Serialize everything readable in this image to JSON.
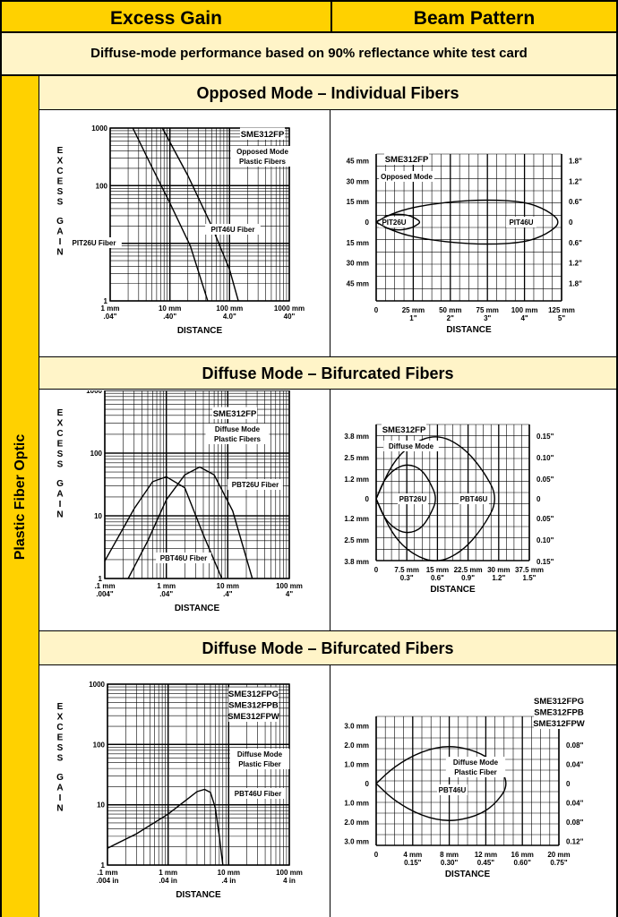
{
  "header": {
    "left": "Excess Gain",
    "right": "Beam Pattern"
  },
  "banner": "Diffuse-mode performance based on 90% reflectance white test card",
  "side_label": "Plastic Fiber Optic",
  "sections": [
    {
      "title": "Opposed Mode – Individual Fibers"
    },
    {
      "title": "Diffuse Mode – Bifurcated Fibers"
    },
    {
      "title": "Diffuse Mode – Bifurcated Fibers"
    }
  ],
  "chart_data": [
    {
      "id": "eg1",
      "type": "line",
      "title": "SME312FP",
      "annotation": "Opposed Mode\nPlastic Fibers",
      "ylabel": "EXCESS GAIN",
      "xlabel": "DISTANCE",
      "xscale": "log",
      "yscale": "log",
      "xlim": [
        1,
        1000
      ],
      "ylim": [
        1,
        1000
      ],
      "x_ticks": [
        {
          "v": 1,
          "l1": "1 mm",
          "l2": ".04\""
        },
        {
          "v": 10,
          "l1": "10 mm",
          "l2": ".40\""
        },
        {
          "v": 100,
          "l1": "100 mm",
          "l2": "4.0\""
        },
        {
          "v": 1000,
          "l1": "1000 mm",
          "l2": "40\""
        }
      ],
      "y_ticks": [
        {
          "v": 1,
          "l": "1"
        },
        {
          "v": 10,
          "l": "10"
        },
        {
          "v": 100,
          "l": "100"
        },
        {
          "v": 1000,
          "l": "1000"
        }
      ],
      "series": [
        {
          "name": "PIT26U Fiber",
          "x": [
            2.4,
            5,
            10,
            22,
            43
          ],
          "y": [
            1000,
            210,
            50,
            9,
            1
          ]
        },
        {
          "name": "PIT46U Fiber",
          "x": [
            7.5,
            20,
            50,
            100,
            140
          ],
          "y": [
            1000,
            150,
            20,
            3.5,
            1
          ]
        }
      ],
      "grid": true
    },
    {
      "id": "bp1",
      "type": "line",
      "title": "SME312FP",
      "annotation": "Opposed Mode",
      "xlabel": "DISTANCE",
      "xlim": [
        0,
        125
      ],
      "ylim": [
        -50,
        50
      ],
      "x_ticks": [
        {
          "v": 0,
          "l1": "0",
          "l2": ""
        },
        {
          "v": 25,
          "l1": "25 mm",
          "l2": "1\""
        },
        {
          "v": 50,
          "l1": "50 mm",
          "l2": "2\""
        },
        {
          "v": 75,
          "l1": "75 mm",
          "l2": "3\""
        },
        {
          "v": 100,
          "l1": "100 mm",
          "l2": "4\""
        },
        {
          "v": 125,
          "l1": "125 mm",
          "l2": "5\""
        }
      ],
      "y_ticks_left": [
        {
          "v": 45,
          "l": "45 mm"
        },
        {
          "v": 30,
          "l": "30 mm"
        },
        {
          "v": 15,
          "l": "15 mm"
        },
        {
          "v": 0,
          "l": "0"
        },
        {
          "v": -15,
          "l": "15 mm"
        },
        {
          "v": -30,
          "l": "30 mm"
        },
        {
          "v": -45,
          "l": "45 mm"
        }
      ],
      "y_ticks_right": [
        {
          "v": 45,
          "l": "1.8\""
        },
        {
          "v": 30,
          "l": "1.2\""
        },
        {
          "v": 15,
          "l": "0.6\""
        },
        {
          "v": 0,
          "l": "0"
        },
        {
          "v": -15,
          "l": "0.6\""
        },
        {
          "v": -30,
          "l": "1.2\""
        },
        {
          "v": -45,
          "l": "1.8\""
        }
      ],
      "series": [
        {
          "name": "PIT26U",
          "x": [
            0,
            6,
            14,
            22,
            27,
            30,
            27,
            22,
            14,
            6,
            0
          ],
          "y": [
            0,
            4.5,
            6,
            5,
            2.5,
            0,
            -2.5,
            -5,
            -6,
            -4.5,
            0
          ]
        },
        {
          "name": "PIT46U",
          "x": [
            0,
            10,
            25,
            50,
            75,
            100,
            115,
            125,
            115,
            100,
            75,
            50,
            25,
            10,
            0
          ],
          "y": [
            0,
            6,
            11,
            15,
            16.5,
            15,
            9,
            0,
            -9,
            -15,
            -16.5,
            -15,
            -11,
            -6,
            0
          ]
        }
      ],
      "grid": true
    },
    {
      "id": "eg2",
      "type": "line",
      "title": "SME312FP",
      "annotation": "Diffuse Mode\nPlastic Fibers",
      "ylabel": "EXCESS GAIN",
      "xlabel": "DISTANCE",
      "xscale": "log",
      "yscale": "log",
      "xlim": [
        0.1,
        100
      ],
      "ylim": [
        1,
        1000
      ],
      "x_ticks": [
        {
          "v": 0.1,
          "l1": ".1 mm",
          "l2": ".004\""
        },
        {
          "v": 1,
          "l1": "1 mm",
          "l2": ".04\""
        },
        {
          "v": 10,
          "l1": "10 mm",
          "l2": ".4\""
        },
        {
          "v": 100,
          "l1": "100 mm",
          "l2": "4\""
        }
      ],
      "y_ticks": [
        {
          "v": 1,
          "l": "1"
        },
        {
          "v": 10,
          "l": "10"
        },
        {
          "v": 100,
          "l": "100"
        },
        {
          "v": 1000,
          "l": "1000"
        }
      ],
      "series": [
        {
          "name": "PBT26U Fiber",
          "x": [
            0.1,
            0.3,
            0.6,
            1,
            2,
            4,
            8
          ],
          "y": [
            1.9,
            13,
            35,
            42,
            28,
            5,
            1
          ]
        },
        {
          "name": "PBT46U Fiber",
          "x": [
            0.24,
            0.5,
            1,
            2,
            3.5,
            6,
            12,
            25
          ],
          "y": [
            1,
            4,
            18,
            45,
            60,
            45,
            12,
            1
          ]
        }
      ],
      "grid": true
    },
    {
      "id": "bp2",
      "type": "line",
      "title": "SME312FP",
      "annotation": "Diffuse Mode",
      "xlabel": "DISTANCE",
      "xlim": [
        0,
        37.5
      ],
      "ylim": [
        -4.5,
        4.5
      ],
      "x_ticks": [
        {
          "v": 0,
          "l1": "0",
          "l2": ""
        },
        {
          "v": 7.5,
          "l1": "7.5 mm",
          "l2": "0.3\""
        },
        {
          "v": 15,
          "l1": "15 mm",
          "l2": "0.6\""
        },
        {
          "v": 22.5,
          "l1": "22.5 mm",
          "l2": "0.9\""
        },
        {
          "v": 30,
          "l1": "30 mm",
          "l2": "1.2\""
        },
        {
          "v": 37.5,
          "l1": "37.5 mm",
          "l2": "1.5\""
        }
      ],
      "y_ticks_left": [
        {
          "v": 3.8,
          "l": "3.8 mm"
        },
        {
          "v": 2.5,
          "l": "2.5 mm"
        },
        {
          "v": 1.2,
          "l": "1.2 mm"
        },
        {
          "v": 0,
          "l": "0"
        },
        {
          "v": -1.2,
          "l": "1.2 mm"
        },
        {
          "v": -2.5,
          "l": "2.5 mm"
        },
        {
          "v": -3.8,
          "l": "3.8 mm"
        }
      ],
      "y_ticks_right": [
        {
          "v": 3.8,
          "l": "0.15\""
        },
        {
          "v": 2.5,
          "l": "0.10\""
        },
        {
          "v": 1.2,
          "l": "0.05\""
        },
        {
          "v": 0,
          "l": "0"
        },
        {
          "v": -1.2,
          "l": "0.05\""
        },
        {
          "v": -2.5,
          "l": "0.10\""
        },
        {
          "v": -3.8,
          "l": "0.15\""
        }
      ],
      "series": [
        {
          "name": "PBT26U",
          "x": [
            0,
            2,
            5,
            8,
            11,
            13,
            15,
            13,
            11,
            8,
            5,
            2,
            0
          ],
          "y": [
            0,
            1.2,
            1.9,
            2.1,
            1.8,
            1.1,
            0,
            -1.1,
            -1.8,
            -2.1,
            -1.9,
            -1.2,
            0
          ]
        },
        {
          "name": "PBT46U",
          "x": [
            0,
            4,
            9,
            15,
            21,
            26,
            30,
            26,
            21,
            15,
            9,
            4,
            0
          ],
          "y": [
            0,
            2.2,
            3.4,
            3.9,
            3.2,
            1.8,
            0,
            -1.8,
            -3.2,
            -3.9,
            -3.4,
            -2.2,
            0
          ]
        }
      ],
      "grid": true
    },
    {
      "id": "eg3",
      "type": "line",
      "title": "SME312FPG\nSME312FPB\nSME312FPW",
      "annotation": "Diffuse Mode\nPlastic Fiber",
      "ylabel": "EXCESS GAIN",
      "xlabel": "DISTANCE",
      "xscale": "log",
      "yscale": "log",
      "xlim": [
        0.1,
        100
      ],
      "ylim": [
        1,
        1000
      ],
      "x_ticks": [
        {
          "v": 0.1,
          "l1": ".1 mm",
          "l2": ".004 in"
        },
        {
          "v": 1,
          "l1": "1 mm",
          "l2": ".04 in"
        },
        {
          "v": 10,
          "l1": "10 mm",
          "l2": ".4 in"
        },
        {
          "v": 100,
          "l1": "100 mm",
          "l2": "4 in"
        }
      ],
      "y_ticks": [
        {
          "v": 1,
          "l": "1"
        },
        {
          "v": 10,
          "l": "10"
        },
        {
          "v": 100,
          "l": "100"
        },
        {
          "v": 1000,
          "l": "1000"
        }
      ],
      "series": [
        {
          "name": "PBT46U Fiber",
          "x": [
            0.1,
            0.3,
            1,
            2,
            3,
            4,
            5,
            6,
            7,
            8
          ],
          "y": [
            1.9,
            3.3,
            7,
            12,
            16.5,
            18,
            16,
            9,
            3,
            1
          ]
        }
      ],
      "grid": true
    },
    {
      "id": "bp3",
      "type": "line",
      "title": "SME312FPG\nSME312FPB\nSME312FPW",
      "annotation": "Diffuse Mode\nPlastic Fiber",
      "xlabel": "DISTANCE",
      "xlim": [
        0,
        20
      ],
      "ylim": [
        -3.5,
        3.5
      ],
      "x_ticks": [
        {
          "v": 0,
          "l1": "0",
          "l2": ""
        },
        {
          "v": 4,
          "l1": "4 mm",
          "l2": "0.15\""
        },
        {
          "v": 8,
          "l1": "8 mm",
          "l2": "0.30\""
        },
        {
          "v": 12,
          "l1": "12 mm",
          "l2": "0.45\""
        },
        {
          "v": 16,
          "l1": "16 mm",
          "l2": "0.60\""
        },
        {
          "v": 20,
          "l1": "20 mm",
          "l2": "0.75\""
        }
      ],
      "y_ticks_left": [
        {
          "v": 3,
          "l": "3.0 mm"
        },
        {
          "v": 2,
          "l": "2.0 mm"
        },
        {
          "v": 1,
          "l": "1.0 mm"
        },
        {
          "v": 0,
          "l": "0"
        },
        {
          "v": -1,
          "l": "1.0 mm"
        },
        {
          "v": -2,
          "l": "2.0 mm"
        },
        {
          "v": -3,
          "l": "3.0 mm"
        }
      ],
      "y_ticks_right": [
        {
          "v": 3,
          "l": "0.12\""
        },
        {
          "v": 2,
          "l": "0.08\""
        },
        {
          "v": 1,
          "l": "0.04\""
        },
        {
          "v": 0,
          "l": "0"
        },
        {
          "v": -1,
          "l": "0.04\""
        },
        {
          "v": -2,
          "l": "0.08\""
        },
        {
          "v": -3,
          "l": "0.12\""
        }
      ],
      "series": [
        {
          "name": "PBT46U",
          "x": [
            0,
            2,
            5,
            8,
            11,
            13,
            14.6,
            13,
            11,
            8,
            5,
            2,
            0
          ],
          "y": [
            0,
            0.9,
            1.7,
            2,
            1.7,
            1.1,
            0,
            -1.1,
            -1.7,
            -2,
            -1.7,
            -0.9,
            0
          ]
        }
      ],
      "grid": true
    }
  ]
}
